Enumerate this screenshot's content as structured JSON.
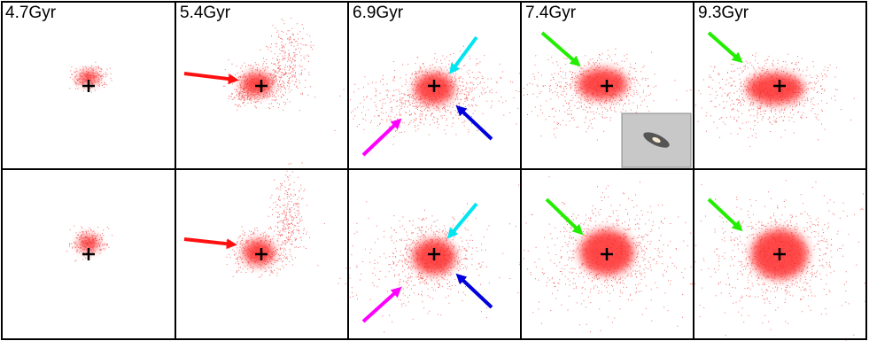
{
  "panels": {
    "labels": [
      "4.7Gyr",
      "5.4Gyr",
      "6.9Gyr",
      "7.4Gyr",
      "9.3Gyr"
    ]
  }
}
